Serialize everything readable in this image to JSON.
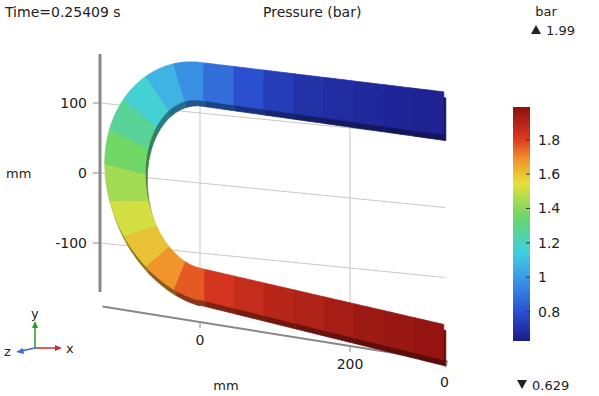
{
  "chart_data": {
    "type": "surface",
    "title": "Pressure (bar)",
    "subtitle": "Time=0.25409 s",
    "xlabel": "mm",
    "ylabel": "mm",
    "xlim": [
      -130,
      330
    ],
    "xticks": [
      0,
      200
    ],
    "ylim": [
      -170,
      170
    ],
    "yticks": [
      -100,
      0,
      100
    ],
    "zticks": [
      0
    ],
    "grid": true,
    "values": [
      1.97,
      1.96,
      1.95,
      1.93,
      1.91,
      1.89,
      1.86,
      1.82,
      1.76,
      1.68,
      1.6,
      1.52,
      1.44,
      1.36,
      1.27,
      1.17,
      1.07,
      0.97,
      0.88,
      0.8,
      0.74,
      0.7,
      0.68,
      0.67,
      0.66,
      0.65
    ],
    "colorbar": {
      "label": "bar",
      "range": [
        0.629,
        1.99
      ],
      "ticks": [
        0.8,
        1,
        1.2,
        1.4,
        1.6,
        1.8
      ]
    },
    "triad_labels": [
      "x",
      "y",
      "z"
    ]
  }
}
